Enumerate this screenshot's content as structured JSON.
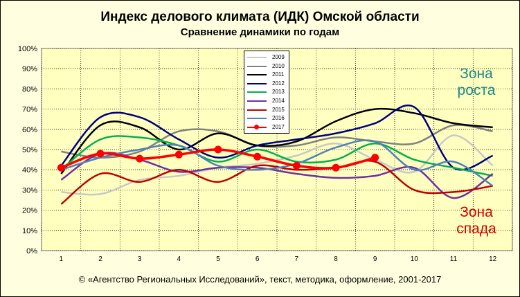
{
  "title": "Индекс делового климата (ИДК) Омской области",
  "subtitle": "Сравнение динамики  по годам",
  "zone_up": [
    "Зона",
    "роста"
  ],
  "zone_down": [
    "Зона",
    "спада"
  ],
  "copyright": "© «Агентство Региональных  Исследований»,  текст, методика, оформление,  2001-2017",
  "chart_data": {
    "type": "line",
    "categories": [
      "1",
      "2",
      "3",
      "4",
      "5",
      "6",
      "7",
      "8",
      "9",
      "10",
      "11",
      "12"
    ],
    "ylim": [
      0,
      100
    ],
    "y_ticks": [
      "0%",
      "10%",
      "20%",
      "30%",
      "40%",
      "50%",
      "60%",
      "70%",
      "80%",
      "90%",
      "100%"
    ],
    "grid": true,
    "legend_position": "top-center",
    "series": [
      {
        "name": "2009",
        "color": "#c8c8c8",
        "width": 2.5,
        "values": [
          29,
          28,
          35,
          37,
          41,
          43,
          47,
          53,
          45,
          39,
          57,
          42
        ],
        "marker": false
      },
      {
        "name": "2010",
        "color": "#808080",
        "width": 2.5,
        "values": [
          49,
          46,
          49,
          59,
          59,
          52,
          52,
          56,
          54,
          53,
          62,
          59
        ],
        "marker": false
      },
      {
        "name": "2011",
        "color": "#000000",
        "width": 2.5,
        "values": [
          38,
          62,
          61,
          50,
          58,
          52,
          54,
          64,
          70,
          68,
          63,
          61
        ],
        "marker": false
      },
      {
        "name": "2012",
        "color": "#000080",
        "width": 2.5,
        "values": [
          42,
          66,
          66,
          55,
          46,
          52,
          55,
          58,
          63,
          71,
          41,
          47
        ],
        "marker": false
      },
      {
        "name": "2013",
        "color": "#00b050",
        "width": 2.5,
        "values": [
          40,
          55,
          56,
          52,
          44,
          50,
          44,
          45,
          53,
          45,
          41,
          37
        ],
        "marker": false
      },
      {
        "name": "2014",
        "color": "#7030a0",
        "width": 2.5,
        "values": [
          35,
          48,
          45,
          39,
          41,
          41,
          38,
          36,
          37,
          41,
          26,
          38
        ],
        "marker": false
      },
      {
        "name": "2015",
        "color": "#c00000",
        "width": 2.5,
        "values": [
          23,
          38,
          34,
          40,
          34,
          42,
          40,
          41,
          44,
          30,
          29,
          32
        ],
        "marker": false
      },
      {
        "name": "2016",
        "color": "#4f81bd",
        "width": 2.5,
        "values": [
          40,
          46,
          50,
          52,
          42,
          40,
          43,
          51,
          54,
          40,
          44,
          32
        ],
        "marker": false
      },
      {
        "name": "2017",
        "color": "#ff0000",
        "width": 3.5,
        "values": [
          41,
          48,
          45.5,
          47.5,
          50,
          46.5,
          42,
          41,
          46,
          null,
          null,
          null
        ],
        "marker": true
      }
    ]
  }
}
